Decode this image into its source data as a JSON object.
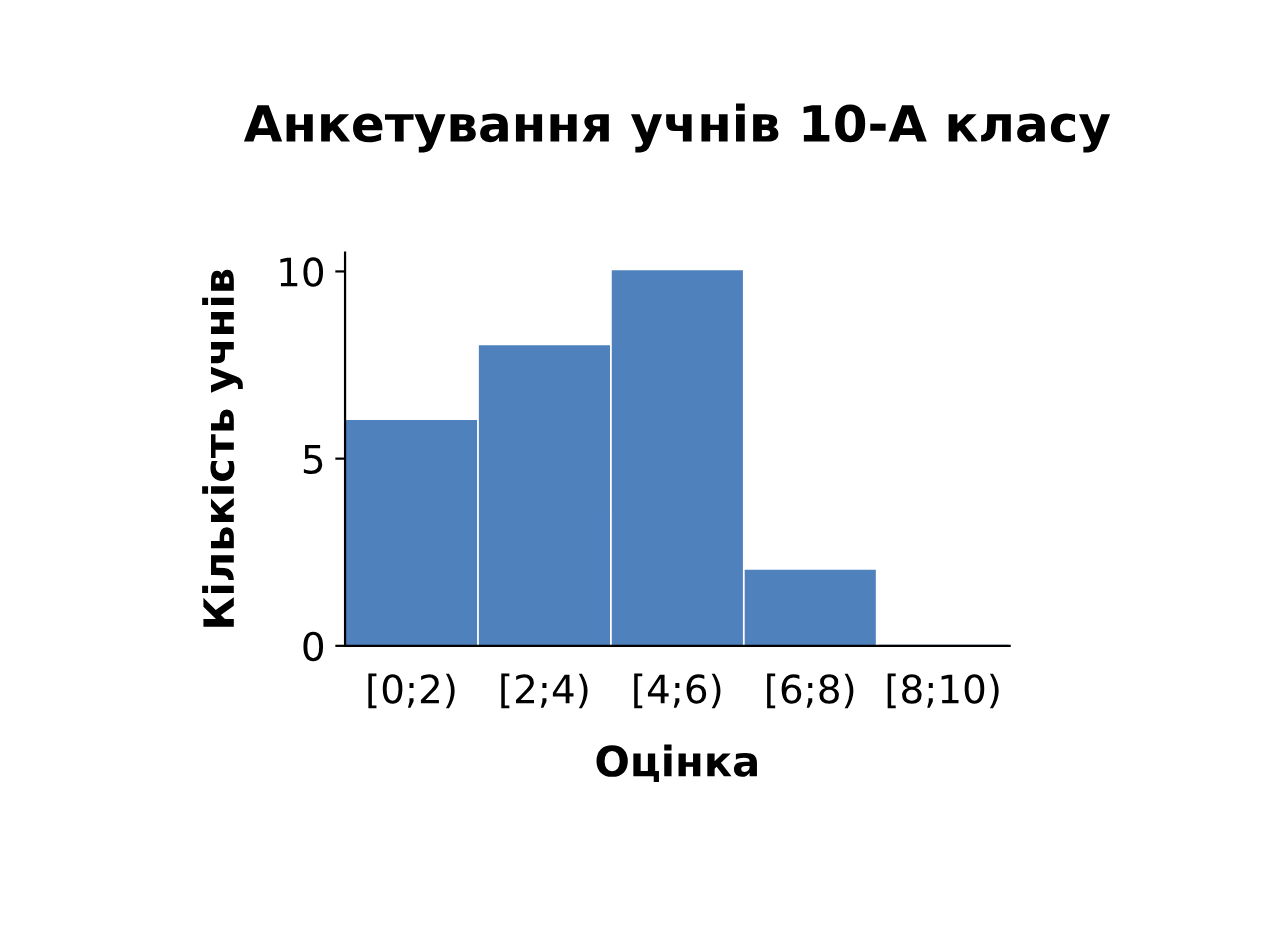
{
  "chart_data": {
    "type": "bar",
    "title": "Анкетування учнів 10-А класу",
    "xlabel": "Оцінка",
    "ylabel": "Кількість учнів",
    "categories": [
      "[0;2)",
      "[2;4)",
      "[4;6)",
      "[6;8)",
      "[8;10)"
    ],
    "values": [
      6,
      8,
      10,
      2,
      0
    ],
    "color": "#4f81bd",
    "ylim": [
      0,
      10.5
    ],
    "yticks": [
      0,
      5,
      10
    ],
    "grid": false,
    "legend": false
  }
}
